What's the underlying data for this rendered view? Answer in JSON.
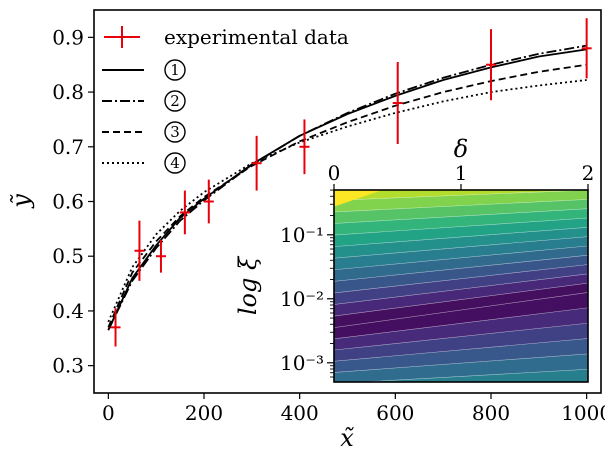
{
  "chart_data": [
    {
      "type": "line",
      "xlabel": "x̃",
      "ylabel": "ỹ",
      "xlim": [
        -30,
        1030
      ],
      "ylim": [
        0.25,
        0.95
      ],
      "xticks": [
        0,
        200,
        400,
        600,
        800,
        1000
      ],
      "xtick_labels": [
        "0",
        "200",
        "400",
        "600",
        "800",
        "1000"
      ],
      "yticks": [
        0.3,
        0.4,
        0.5,
        0.6,
        0.7,
        0.8,
        0.9
      ],
      "ytick_labels": [
        "0.3",
        "0.4",
        "0.5",
        "0.6",
        "0.7",
        "0.8",
        "0.9"
      ],
      "grid": false,
      "legend": {
        "placement": "top-left",
        "entries": [
          {
            "label": "experimental data",
            "style": "red-errorbar"
          },
          {
            "label": "①",
            "style": "solid"
          },
          {
            "label": "②",
            "style": "dashdot"
          },
          {
            "label": "③",
            "style": "dashed"
          },
          {
            "label": "④",
            "style": "dotted"
          }
        ]
      },
      "experimental_data": {
        "name": "experimental data",
        "color": "#e8000b",
        "x": [
          15,
          65,
          110,
          160,
          210,
          310,
          410,
          605,
          800,
          1000
        ],
        "y": [
          0.37,
          0.51,
          0.5,
          0.58,
          0.6,
          0.67,
          0.7,
          0.78,
          0.85,
          0.88
        ],
        "yerr": [
          0.035,
          0.055,
          0.03,
          0.04,
          0.04,
          0.05,
          0.05,
          0.075,
          0.065,
          0.055
        ]
      },
      "series": [
        {
          "name": "①",
          "dash": "solid",
          "x": [
            0,
            50,
            100,
            150,
            200,
            300,
            400,
            500,
            600,
            700,
            800,
            900,
            1000
          ],
          "y": [
            0.365,
            0.46,
            0.52,
            0.57,
            0.605,
            0.668,
            0.72,
            0.76,
            0.793,
            0.822,
            0.845,
            0.865,
            0.878
          ]
        },
        {
          "name": "②",
          "dash": "dashdot",
          "x": [
            0,
            50,
            100,
            150,
            200,
            300,
            400,
            500,
            600,
            700,
            800,
            900,
            1000
          ],
          "y": [
            0.365,
            0.455,
            0.515,
            0.565,
            0.602,
            0.667,
            0.72,
            0.762,
            0.797,
            0.826,
            0.85,
            0.87,
            0.885
          ]
        },
        {
          "name": "③",
          "dash": "dashed",
          "x": [
            0,
            50,
            100,
            150,
            200,
            300,
            400,
            500,
            600,
            700,
            800,
            900,
            1000
          ],
          "y": [
            0.37,
            0.47,
            0.527,
            0.573,
            0.608,
            0.665,
            0.71,
            0.745,
            0.775,
            0.8,
            0.82,
            0.837,
            0.85
          ]
        },
        {
          "name": "④",
          "dash": "dotted",
          "x": [
            0,
            50,
            100,
            150,
            200,
            300,
            400,
            500,
            600,
            700,
            800,
            900,
            1000
          ],
          "y": [
            0.38,
            0.48,
            0.54,
            0.583,
            0.617,
            0.67,
            0.708,
            0.737,
            0.762,
            0.783,
            0.8,
            0.812,
            0.822
          ]
        }
      ]
    },
    {
      "type": "heatmap",
      "xlabel": "δ",
      "ylabel": "log ξ",
      "xlim": [
        0,
        2
      ],
      "ylim_log10": [
        -3.3,
        -0.3
      ],
      "log_y": true,
      "xticks": [
        0,
        1,
        2
      ],
      "xtick_labels": [
        "0",
        "1",
        "2"
      ],
      "xaxis_position": "top",
      "yticks_log10": [
        -3,
        -2,
        -1
      ],
      "ytick_labels": [
        "10⁻³",
        "10⁻²",
        "10⁻¹"
      ],
      "colormap": "viridis",
      "contour_levels": 14,
      "valley_log10_at_delta_0": -2.45,
      "valley_log10_at_delta_2": -1.9,
      "levels_below_valley": 6,
      "levels_above_valley": 13,
      "colors": {
        "valley": "#440154",
        "low_side_max": "#2a788e",
        "high_side_max": "#fde725"
      }
    }
  ]
}
